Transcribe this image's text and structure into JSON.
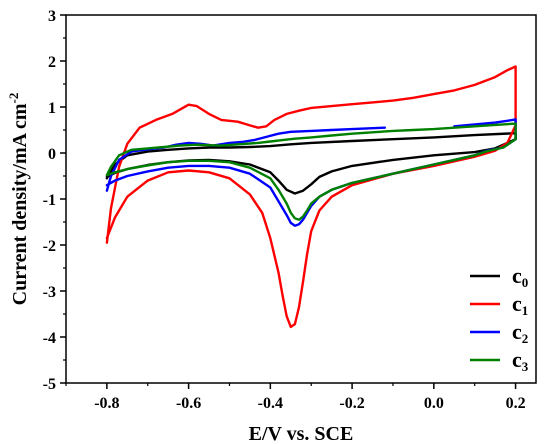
{
  "chart_data": {
    "type": "line",
    "xlabel": "E/V vs. SCE",
    "ylabel": "Current density/mA cm",
    "ylabel_superscript": "-2",
    "xlim": [
      -0.9,
      0.25
    ],
    "ylim": [
      -5,
      3
    ],
    "xticks": [
      -0.8,
      -0.6,
      -0.4,
      -0.2,
      0.0,
      0.2
    ],
    "xtick_labels": [
      "-0.8",
      "-0.6",
      "-0.4",
      "-0.2",
      "0.0",
      "0.2"
    ],
    "yticks": [
      -5,
      -4,
      -3,
      -2,
      -1,
      0,
      1,
      2,
      3
    ],
    "ytick_labels": [
      "-5",
      "-4",
      "-3",
      "-2",
      "-1",
      "0",
      "1",
      "2",
      "3"
    ],
    "legend_position": "bottom-right",
    "series": [
      {
        "name": "c0",
        "base": "c",
        "subscript": "0",
        "color": "#000000",
        "x": [
          -0.8,
          -0.78,
          -0.75,
          -0.7,
          -0.65,
          -0.6,
          -0.55,
          -0.5,
          -0.45,
          -0.4,
          -0.35,
          -0.3,
          -0.2,
          -0.1,
          0.0,
          0.1,
          0.2,
          0.2,
          0.2,
          0.15,
          0.1,
          0.0,
          -0.1,
          -0.2,
          -0.25,
          -0.28,
          -0.3,
          -0.32,
          -0.34,
          -0.36,
          -0.38,
          -0.4,
          -0.45,
          -0.5,
          -0.55,
          -0.6,
          -0.65,
          -0.7,
          -0.75,
          -0.78,
          -0.8
        ],
        "y": [
          -0.55,
          -0.25,
          -0.05,
          0.03,
          0.07,
          0.1,
          0.12,
          0.12,
          0.13,
          0.15,
          0.19,
          0.22,
          0.26,
          0.3,
          0.34,
          0.39,
          0.43,
          0.4,
          0.3,
          0.1,
          0.02,
          -0.05,
          -0.15,
          -0.28,
          -0.4,
          -0.52,
          -0.68,
          -0.82,
          -0.88,
          -0.8,
          -0.6,
          -0.42,
          -0.25,
          -0.18,
          -0.15,
          -0.16,
          -0.2,
          -0.26,
          -0.35,
          -0.43,
          -0.52
        ]
      },
      {
        "name": "c1",
        "base": "c",
        "subscript": "1",
        "color": "#ff0000",
        "x": [
          -0.8,
          -0.79,
          -0.77,
          -0.75,
          -0.72,
          -0.68,
          -0.64,
          -0.62,
          -0.6,
          -0.58,
          -0.55,
          -0.52,
          -0.48,
          -0.45,
          -0.43,
          -0.41,
          -0.39,
          -0.36,
          -0.33,
          -0.3,
          -0.25,
          -0.2,
          -0.15,
          -0.1,
          -0.05,
          0.0,
          0.05,
          0.1,
          0.15,
          0.18,
          0.2,
          0.2,
          0.2,
          0.18,
          0.15,
          0.1,
          0.05,
          0.0,
          -0.1,
          -0.2,
          -0.25,
          -0.28,
          -0.3,
          -0.31,
          -0.32,
          -0.33,
          -0.34,
          -0.35,
          -0.36,
          -0.37,
          -0.38,
          -0.4,
          -0.42,
          -0.45,
          -0.5,
          -0.55,
          -0.6,
          -0.65,
          -0.7,
          -0.75,
          -0.78,
          -0.8
        ],
        "y": [
          -1.95,
          -1.2,
          -0.3,
          0.2,
          0.55,
          0.72,
          0.85,
          0.95,
          1.05,
          1.02,
          0.85,
          0.72,
          0.68,
          0.6,
          0.55,
          0.58,
          0.72,
          0.85,
          0.92,
          0.98,
          1.02,
          1.06,
          1.1,
          1.14,
          1.2,
          1.28,
          1.36,
          1.48,
          1.65,
          1.8,
          1.88,
          1.2,
          0.6,
          0.22,
          0.05,
          -0.08,
          -0.18,
          -0.28,
          -0.45,
          -0.7,
          -0.95,
          -1.25,
          -1.7,
          -2.2,
          -2.8,
          -3.35,
          -3.72,
          -3.78,
          -3.55,
          -3.1,
          -2.6,
          -1.85,
          -1.3,
          -0.9,
          -0.55,
          -0.42,
          -0.38,
          -0.42,
          -0.6,
          -0.95,
          -1.4,
          -1.85
        ]
      },
      {
        "name": "c2",
        "base": "c",
        "subscript": "2",
        "color": "#0000ff",
        "x": [
          -0.8,
          -0.79,
          -0.77,
          -0.74,
          -0.7,
          -0.66,
          -0.63,
          -0.6,
          -0.57,
          -0.54,
          -0.5,
          -0.47,
          -0.44,
          -0.41,
          -0.38,
          -0.35,
          -0.3,
          -0.25,
          -0.2,
          -0.15,
          -0.12
        ],
        "y": [
          -0.82,
          -0.5,
          -0.15,
          0.03,
          0.08,
          0.12,
          0.18,
          0.22,
          0.2,
          0.16,
          0.22,
          0.24,
          0.28,
          0.35,
          0.42,
          0.46,
          0.48,
          0.5,
          0.52,
          0.54,
          0.55
        ],
        "x2": [
          0.05,
          0.1,
          0.15,
          0.18,
          0.2,
          0.2,
          0.2,
          0.17,
          0.13,
          0.1,
          0.05,
          0.0,
          -0.05,
          -0.1,
          -0.15,
          -0.2,
          -0.25,
          -0.28,
          -0.3,
          -0.31,
          -0.32,
          -0.33,
          -0.34,
          -0.35,
          -0.36,
          -0.38,
          -0.4,
          -0.45,
          -0.5,
          -0.55,
          -0.6,
          -0.65,
          -0.7,
          -0.75,
          -0.78,
          -0.8
        ],
        "y2": [
          0.58,
          0.62,
          0.66,
          0.7,
          0.73,
          0.55,
          0.3,
          0.12,
          0.05,
          -0.05,
          -0.15,
          -0.25,
          -0.35,
          -0.45,
          -0.55,
          -0.65,
          -0.8,
          -0.95,
          -1.15,
          -1.3,
          -1.45,
          -1.55,
          -1.58,
          -1.52,
          -1.35,
          -1.05,
          -0.75,
          -0.45,
          -0.32,
          -0.28,
          -0.28,
          -0.32,
          -0.4,
          -0.5,
          -0.6,
          -0.7
        ]
      },
      {
        "name": "c3",
        "base": "c",
        "subscript": "3",
        "color": "#008000",
        "x": [
          -0.8,
          -0.79,
          -0.77,
          -0.74,
          -0.7,
          -0.66,
          -0.62,
          -0.58,
          -0.55,
          -0.52,
          -0.49,
          -0.46,
          -0.43,
          -0.4,
          -0.37,
          -0.34,
          -0.3,
          -0.25,
          -0.2,
          -0.15,
          -0.1,
          -0.05,
          0.0,
          0.05,
          0.1,
          0.15,
          0.2,
          0.2,
          0.2,
          0.17,
          0.13,
          0.1,
          0.05,
          0.0,
          -0.05,
          -0.1,
          -0.15,
          -0.2,
          -0.25,
          -0.28,
          -0.3,
          -0.31,
          -0.32,
          -0.33,
          -0.34,
          -0.35,
          -0.36,
          -0.38,
          -0.4,
          -0.45,
          -0.5,
          -0.55,
          -0.6,
          -0.65,
          -0.7,
          -0.75,
          -0.78,
          -0.8
        ],
        "y": [
          -0.48,
          -0.3,
          -0.05,
          0.07,
          0.1,
          0.13,
          0.16,
          0.18,
          0.17,
          0.16,
          0.18,
          0.2,
          0.22,
          0.25,
          0.28,
          0.31,
          0.34,
          0.38,
          0.42,
          0.45,
          0.48,
          0.5,
          0.52,
          0.55,
          0.58,
          0.61,
          0.64,
          0.5,
          0.3,
          0.12,
          0.04,
          -0.05,
          -0.15,
          -0.25,
          -0.35,
          -0.45,
          -0.55,
          -0.65,
          -0.8,
          -0.95,
          -1.1,
          -1.25,
          -1.38,
          -1.45,
          -1.42,
          -1.3,
          -1.1,
          -0.8,
          -0.55,
          -0.32,
          -0.2,
          -0.17,
          -0.17,
          -0.2,
          -0.27,
          -0.35,
          -0.42,
          -0.48
        ]
      }
    ]
  }
}
